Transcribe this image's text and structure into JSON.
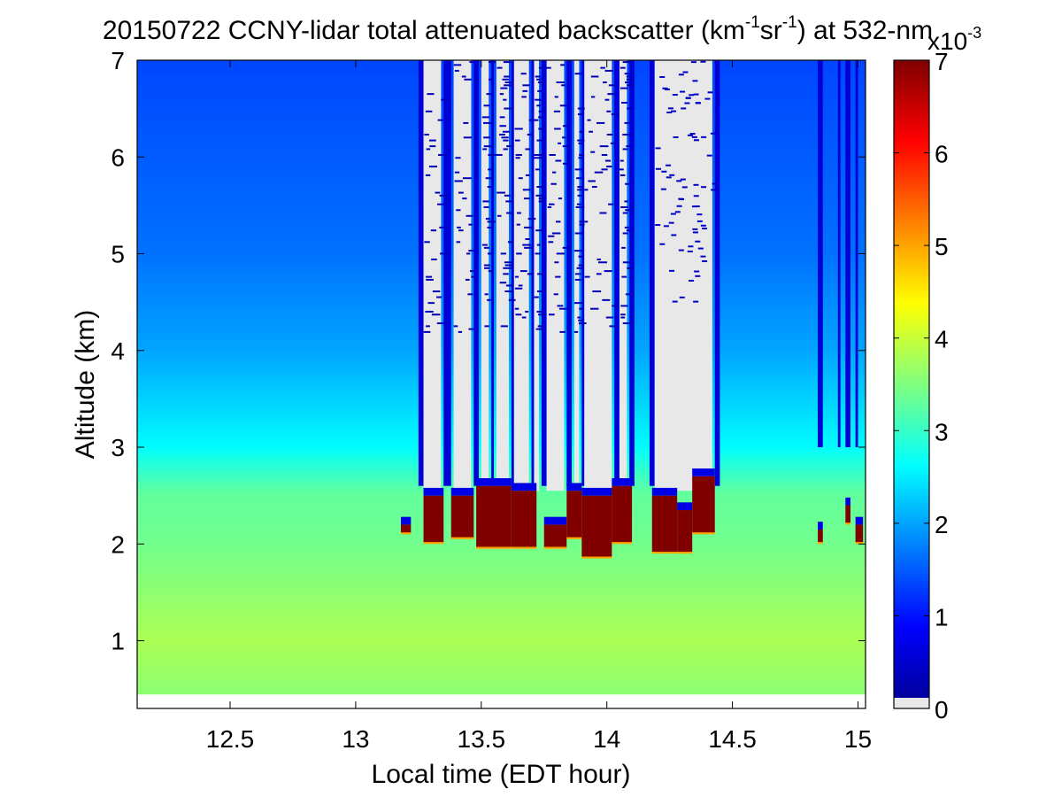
{
  "chart_data": {
    "type": "heatmap",
    "title": {
      "prefix": "20150722 CCNY-lidar total attenuated backscatter (km",
      "sup1": "-1",
      "middle": "sr",
      "sup2": "-1",
      "suffix": ") at 532-nm"
    },
    "xlabel": "Local time (EDT hour)",
    "ylabel": "Altitude (km)",
    "xlim": [
      12.13,
      15.03
    ],
    "ylim": [
      0.3,
      7
    ],
    "x_ticks": [
      12.5,
      13,
      13.5,
      14,
      14.5,
      15
    ],
    "x_tick_labels": [
      "12.5",
      "13",
      "13.5",
      "14",
      "14.5",
      "15"
    ],
    "y_ticks": [
      1,
      2,
      3,
      4,
      5,
      6,
      7
    ],
    "y_tick_labels": [
      "1",
      "2",
      "3",
      "4",
      "5",
      "6",
      "7"
    ],
    "colorbar": {
      "colormap": "jet",
      "no_signal_color": "#e8e8e8",
      "range": [
        0,
        7
      ],
      "ticks": [
        0,
        1,
        2,
        3,
        4,
        5,
        6,
        7
      ],
      "tick_labels": [
        "0",
        "1",
        "2",
        "3",
        "4",
        "5",
        "6",
        "7"
      ],
      "scale_label_base": "x10",
      "scale_label_exp": "-3"
    },
    "data_bottom_km": 0.45,
    "profile_background": [
      {
        "alt": 0.45,
        "value": 3.6
      },
      {
        "alt": 1.0,
        "value": 3.8
      },
      {
        "alt": 2.0,
        "value": 3.4
      },
      {
        "alt": 2.5,
        "value": 3.3
      },
      {
        "alt": 3.0,
        "value": 2.6
      },
      {
        "alt": 3.5,
        "value": 2.3
      },
      {
        "alt": 4.0,
        "value": 2.0
      },
      {
        "alt": 5.0,
        "value": 1.65
      },
      {
        "alt": 7.0,
        "value": 1.35
      }
    ],
    "cloud_layers": [
      {
        "start": 13.27,
        "end": 13.35,
        "base": 2.0,
        "top": 2.5
      },
      {
        "start": 13.38,
        "end": 13.47,
        "base": 2.05,
        "top": 2.5
      },
      {
        "start": 13.48,
        "end": 13.62,
        "base": 1.95,
        "top": 2.6
      },
      {
        "start": 13.62,
        "end": 13.72,
        "base": 1.95,
        "top": 2.55
      },
      {
        "start": 13.75,
        "end": 13.84,
        "base": 1.95,
        "top": 2.2
      },
      {
        "start": 13.84,
        "end": 13.9,
        "base": 2.05,
        "top": 2.55
      },
      {
        "start": 13.9,
        "end": 14.02,
        "base": 1.85,
        "top": 2.5
      },
      {
        "start": 14.02,
        "end": 14.1,
        "base": 2.0,
        "top": 2.6
      },
      {
        "start": 14.18,
        "end": 14.28,
        "base": 1.9,
        "top": 2.5
      },
      {
        "start": 14.28,
        "end": 14.34,
        "base": 1.9,
        "top": 2.35
      },
      {
        "start": 14.34,
        "end": 14.43,
        "base": 2.1,
        "top": 2.7
      },
      {
        "start": 13.18,
        "end": 13.22,
        "base": 2.1,
        "top": 2.2
      },
      {
        "start": 14.84,
        "end": 14.86,
        "base": 2.0,
        "top": 2.15
      },
      {
        "start": 14.95,
        "end": 14.97,
        "base": 2.2,
        "top": 2.4
      },
      {
        "start": 14.99,
        "end": 15.02,
        "base": 2.0,
        "top": 2.2
      }
    ],
    "no_signal_columns": [
      {
        "start": 13.27,
        "end": 13.34
      },
      {
        "start": 13.39,
        "end": 13.46
      },
      {
        "start": 13.5,
        "end": 13.53
      },
      {
        "start": 13.56,
        "end": 13.61
      },
      {
        "start": 13.63,
        "end": 13.69
      },
      {
        "start": 13.71,
        "end": 13.73
      },
      {
        "start": 13.76,
        "end": 13.83
      },
      {
        "start": 13.87,
        "end": 13.89
      },
      {
        "start": 13.91,
        "end": 14.02
      },
      {
        "start": 14.05,
        "end": 14.08
      },
      {
        "start": 14.19,
        "end": 14.42
      }
    ],
    "dark_blue_columns": [
      {
        "start": 13.25,
        "end": 13.27
      },
      {
        "start": 13.35,
        "end": 13.38
      },
      {
        "start": 13.47,
        "end": 13.49
      },
      {
        "start": 13.54,
        "end": 13.55
      },
      {
        "start": 13.62,
        "end": 13.63
      },
      {
        "start": 13.7,
        "end": 13.71
      },
      {
        "start": 13.74,
        "end": 13.76
      },
      {
        "start": 13.84,
        "end": 13.86
      },
      {
        "start": 13.9,
        "end": 13.91
      },
      {
        "start": 14.03,
        "end": 14.05
      },
      {
        "start": 14.09,
        "end": 14.11
      },
      {
        "start": 14.17,
        "end": 14.19
      },
      {
        "start": 14.43,
        "end": 14.45
      },
      {
        "start": 14.84,
        "end": 14.86
      },
      {
        "start": 14.92,
        "end": 14.93
      },
      {
        "start": 14.95,
        "end": 14.97
      },
      {
        "start": 14.99,
        "end": 15.0
      }
    ],
    "sparse_noise_columns": [
      {
        "start": 14.19,
        "end": 14.42,
        "density": 0.02
      }
    ]
  }
}
